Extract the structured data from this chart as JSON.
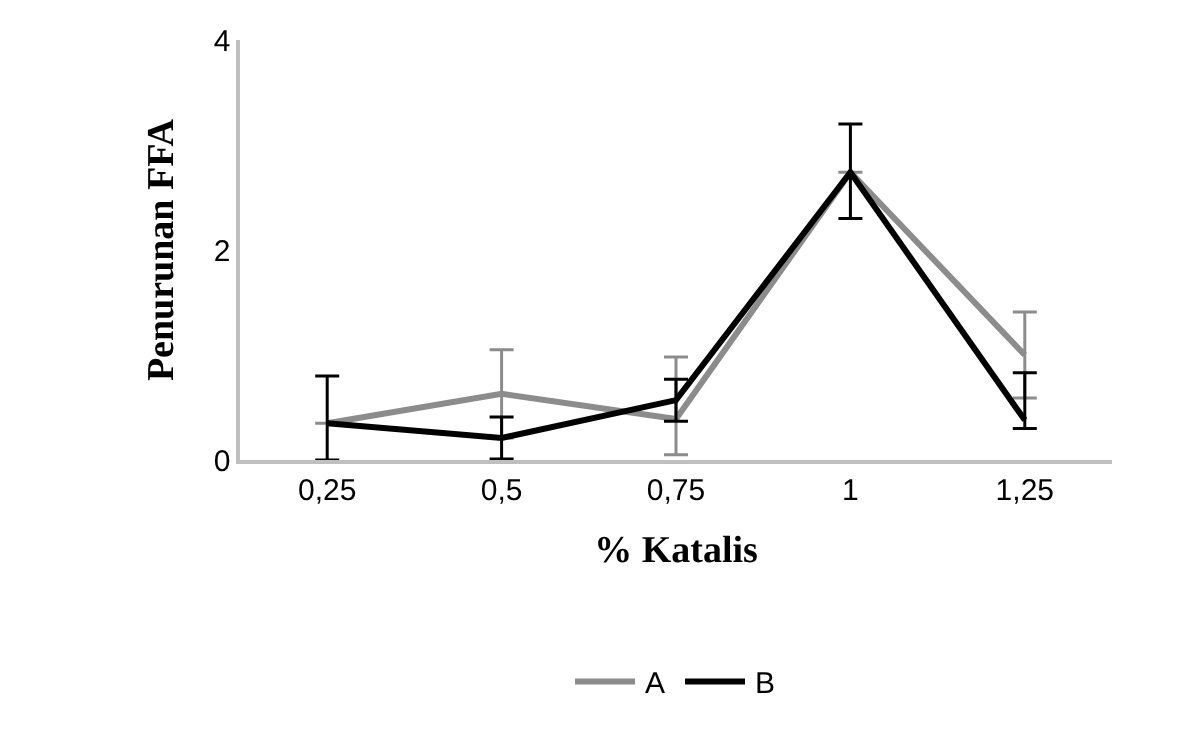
{
  "chart_data": {
    "type": "line",
    "xlabel": "% Katalis",
    "ylabel": "Penurunan FFA",
    "categories": [
      "0,25",
      "0,5",
      "0,75",
      "1",
      "1,25"
    ],
    "series": [
      {
        "name": "A",
        "color": "#8c8c8c",
        "values": [
          0.35,
          0.63,
          0.39,
          2.74,
          1.0
        ],
        "errors": [
          null,
          0.42,
          [
            0.05,
            0.98
          ],
          null,
          0.41
        ]
      },
      {
        "name": "B",
        "color": "#000000",
        "values": [
          0.35,
          0.21,
          0.57,
          2.74,
          0.38
        ],
        "errors": [
          [
            0,
            0.8
          ],
          0.2,
          0.2,
          [
            2.3,
            3.2
          ],
          [
            0.3,
            0.83
          ]
        ]
      }
    ],
    "ylim": [
      0,
      4
    ],
    "yticks": [
      0,
      2,
      4
    ],
    "legend": "bottom",
    "marker": "none",
    "line_style": "solid"
  }
}
